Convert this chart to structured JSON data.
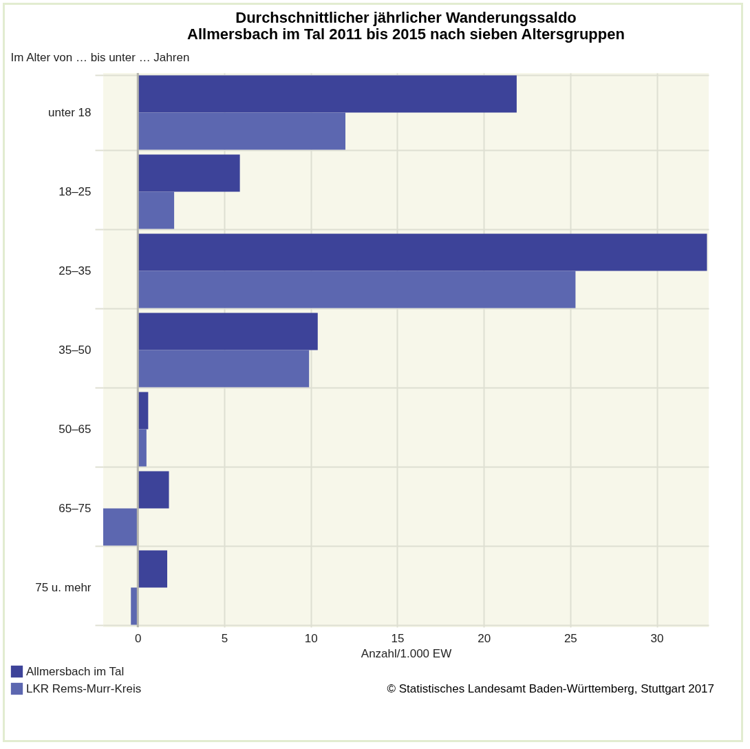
{
  "chart_data": {
    "type": "bar",
    "orientation": "horizontal",
    "title": [
      "Durchschnittlicher jährlicher Wanderungssaldo",
      "Allmersbach im Tal 2011 bis 2015 nach sieben Altersgruppen"
    ],
    "ylabel": "Im Alter von … bis unter … Jahren",
    "xlabel": "Anzahl/1.000 EW",
    "categories": [
      "unter 18",
      "18–25",
      "25–35",
      "35–50",
      "50–65",
      "65–75",
      "75 u. mehr"
    ],
    "series": [
      {
        "name": "Allmersbach im Tal",
        "color": "#3d4399",
        "values": [
          21.9,
          5.9,
          32.9,
          10.4,
          0.6,
          1.8,
          1.7
        ]
      },
      {
        "name": "LKR Rems-Murr-Kreis",
        "color": "#5c67b0",
        "values": [
          12.0,
          2.1,
          25.3,
          9.9,
          0.5,
          -2.0,
          -0.4
        ]
      }
    ],
    "xlim": [
      -2,
      33
    ],
    "xticks": [
      0,
      5,
      10,
      15,
      20,
      25,
      30
    ],
    "grid": true,
    "legend": "bottom left",
    "ref_lines": [
      {
        "axis": "x",
        "value": 0,
        "color": "#b5b5ad"
      }
    ],
    "annotations": [
      "© Statistisches Landesamt Baden-Württemberg, Stuttgart 2017"
    ]
  }
}
